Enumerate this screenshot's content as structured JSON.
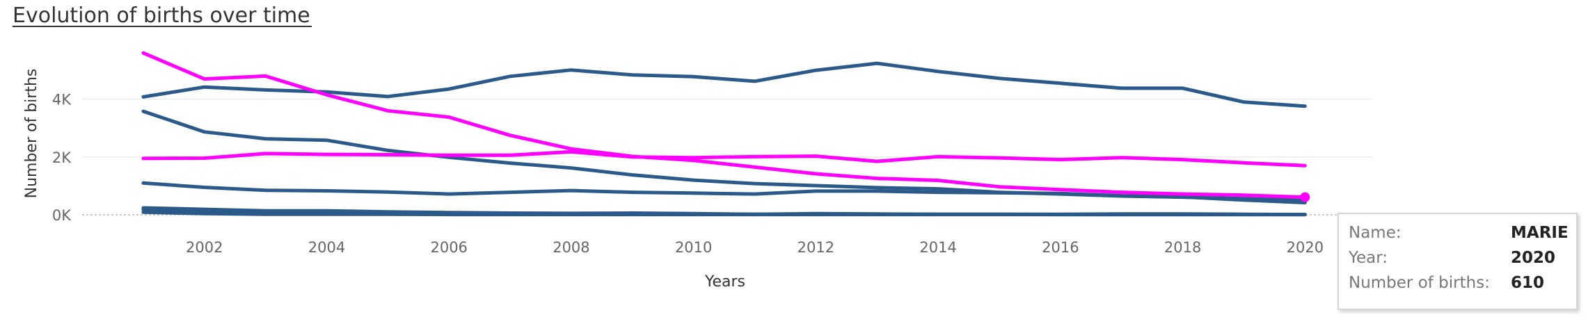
{
  "chart_data": {
    "type": "line",
    "title": "Evolution of births over time",
    "xlabel": "Years",
    "ylabel": "Number of births",
    "x": [
      2001,
      2002,
      2003,
      2004,
      2005,
      2006,
      2007,
      2008,
      2009,
      2010,
      2011,
      2012,
      2013,
      2014,
      2015,
      2016,
      2017,
      2018,
      2019,
      2020
    ],
    "x_ticks": [
      "2002",
      "2004",
      "2006",
      "2008",
      "2010",
      "2012",
      "2014",
      "2016",
      "2018",
      "2020"
    ],
    "y_ticks": [
      "0K",
      "2K",
      "4K"
    ],
    "ylim": [
      0,
      5700
    ],
    "xlim": [
      2000,
      2021.1
    ],
    "grid": "horizontal",
    "colors": {
      "default": "#2b5a8a",
      "highlight": "#ff00ff",
      "grid": "#ececec",
      "baseline": "#b5b5b5"
    },
    "series": [
      {
        "highlight": false,
        "values": [
          4080,
          4420,
          4320,
          4250,
          4090,
          4350,
          4790,
          5010,
          4840,
          4780,
          4620,
          5000,
          5240,
          4960,
          4720,
          4550,
          4380,
          4380,
          3900,
          3760
        ]
      },
      {
        "highlight": false,
        "values": [
          3580,
          2870,
          2630,
          2580,
          2230,
          1990,
          1790,
          1620,
          1380,
          1200,
          1080,
          1010,
          940,
          900,
          780,
          720,
          650,
          610,
          560,
          500
        ]
      },
      {
        "highlight": false,
        "values": [
          1100,
          950,
          850,
          830,
          790,
          720,
          780,
          840,
          780,
          750,
          720,
          820,
          820,
          780,
          760,
          740,
          660,
          620,
          510,
          420
        ]
      },
      {
        "highlight": false,
        "values": [
          240,
          190,
          140,
          140,
          100,
          80,
          60,
          50,
          60,
          40,
          20,
          40,
          30,
          20,
          20,
          20,
          30,
          30,
          20,
          10
        ]
      },
      {
        "highlight": false,
        "values": [
          180,
          120,
          90,
          80,
          60,
          60,
          40,
          30,
          30,
          30,
          20,
          20,
          20,
          20,
          20,
          10,
          10,
          10,
          10,
          10
        ]
      },
      {
        "highlight": false,
        "values": [
          90,
          40,
          20,
          20,
          20,
          10,
          10,
          10,
          10,
          10,
          10,
          10,
          10,
          10,
          10,
          10,
          10,
          10,
          10,
          10
        ]
      },
      {
        "highlight": true,
        "values": [
          5600,
          4700,
          4800,
          4150,
          3600,
          3380,
          2750,
          2280,
          2020,
          1880,
          1650,
          1420,
          1260,
          1190,
          970,
          870,
          780,
          720,
          680,
          610
        ]
      },
      {
        "highlight": true,
        "values": [
          1950,
          1960,
          2120,
          2090,
          2080,
          2060,
          2060,
          2180,
          2000,
          1980,
          2010,
          2030,
          1850,
          2010,
          1970,
          1910,
          1980,
          1910,
          1800,
          1700
        ]
      }
    ],
    "highlight_point": {
      "x": 2020,
      "y": 610
    }
  },
  "tooltip": {
    "name_label": "Name:",
    "name_value": "MARIE",
    "year_label": "Year:",
    "year_value": "2020",
    "births_label": "Number of births:",
    "births_value": "610"
  }
}
